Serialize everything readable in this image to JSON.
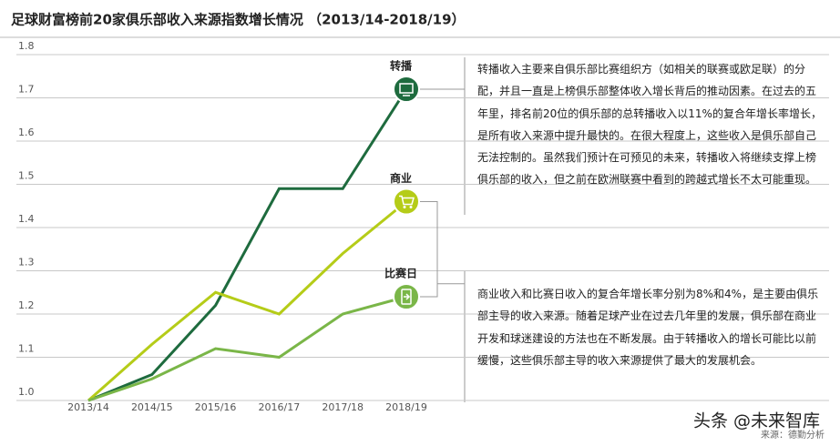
{
  "chart_data": {
    "type": "line",
    "title": "足球财富榜前20家俱乐部收入来源指数增长情况 （2013/14-2018/19）",
    "categories": [
      "2013/14",
      "2014/15",
      "2015/16",
      "2016/17",
      "2017/18",
      "2018/19"
    ],
    "series": [
      {
        "name": "转播",
        "color": "#1e6b3e",
        "values": [
          1.0,
          1.06,
          1.22,
          1.49,
          1.49,
          1.72
        ]
      },
      {
        "name": "商业",
        "color": "#b5cc18",
        "values": [
          1.0,
          1.13,
          1.25,
          1.2,
          1.34,
          1.46
        ]
      },
      {
        "name": "比赛日",
        "color": "#7ab648",
        "values": [
          1.0,
          1.05,
          1.12,
          1.1,
          1.2,
          1.24
        ]
      }
    ],
    "ylim": [
      1.0,
      1.8
    ],
    "yticks": [
      {
        "value": 1.0,
        "label": "1.0"
      },
      1.1,
      1.2,
      1.3,
      1.4,
      1.5,
      1.6,
      1.7,
      1.8
    ],
    "grid": true,
    "annotations": [
      "转播收入主要来自俱乐部比赛组织方（如相关的联赛或欧足联）的分配，并且一直是上榜俱乐部整体收入增长背后的推动因素。在过去的五年里，排名前20位的俱乐部的总转播收入以11%的复合年增长率增长，是所有收入来源中提升最快的。在很大程度上，这些收入是俱乐部自己无法控制的。虽然我们预计在可预见的未来，转播收入将继续支撑上榜俱乐部的收入，但之前在欧洲联赛中看到的跨越式增长不太可能重现。",
      "商业收入和比赛日收入的复合年增长率分别为8%和4%，是主要由俱乐部主导的收入来源。随着足球产业在过去几年里的发展，俱乐部在商业开发和球迷建设的方法也在不断发展。由于转播收入的增长可能比以前缓慢，这些俱乐部主导的收入来源提供了最大的发展机会。"
    ],
    "source": "来源：德勤分析",
    "watermark": "头条 @未来智库"
  }
}
